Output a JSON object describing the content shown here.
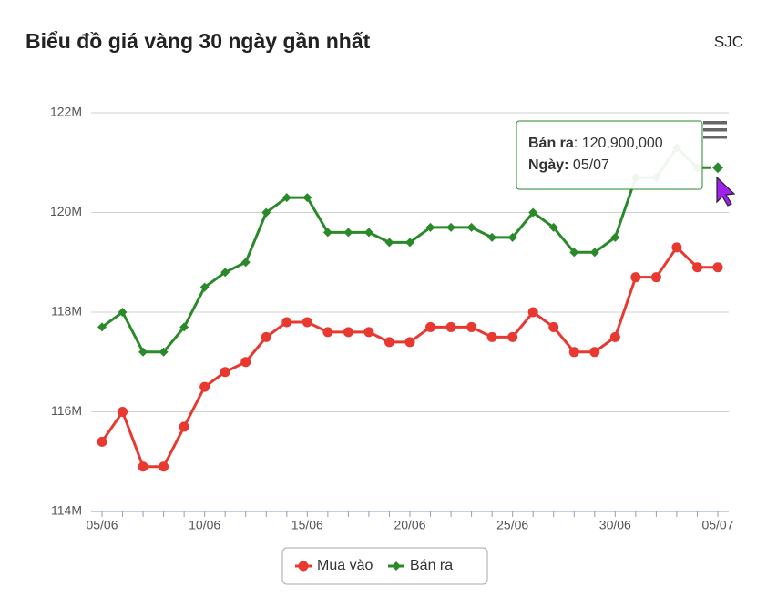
{
  "chart_data": {
    "type": "line",
    "title": "Biểu đồ giá vàng 30 ngày gần nhất",
    "subtitle": "SJC",
    "x": [
      "05/06",
      null,
      null,
      null,
      null,
      "10/06",
      null,
      null,
      null,
      null,
      "15/06",
      null,
      null,
      null,
      null,
      "20/06",
      null,
      null,
      null,
      null,
      "25/06",
      null,
      null,
      null,
      null,
      "30/06",
      null,
      null,
      null,
      null,
      "05/07"
    ],
    "series": [
      {
        "name": "Mua vào",
        "color": "#e8382f",
        "marker": "circle",
        "values": [
          115400000,
          116000000,
          114900000,
          114900000,
          115700000,
          116500000,
          116800000,
          117000000,
          117500000,
          117800000,
          117800000,
          117600000,
          117600000,
          117600000,
          117400000,
          117400000,
          117700000,
          117700000,
          117700000,
          117500000,
          117500000,
          118000000,
          117700000,
          117200000,
          117200000,
          117500000,
          118700000,
          118700000,
          119300000,
          118900000,
          118900000
        ]
      },
      {
        "name": "Bán ra",
        "color": "#2a8a2a",
        "marker": "diamond",
        "values": [
          117700000,
          118000000,
          117200000,
          117200000,
          117700000,
          118500000,
          118800000,
          119000000,
          120000000,
          120300000,
          120300000,
          119600000,
          119600000,
          119600000,
          119400000,
          119400000,
          119700000,
          119700000,
          119700000,
          119500000,
          119500000,
          120000000,
          119700000,
          119200000,
          119200000,
          119500000,
          120700000,
          120700000,
          121300000,
          120900000,
          120900000
        ]
      }
    ],
    "ylim": [
      114000000,
      122000000
    ],
    "yticks": [
      {
        "value": 114000000,
        "label": "114M"
      },
      {
        "value": 116000000,
        "label": "116M"
      },
      {
        "value": 118000000,
        "label": "118M"
      },
      {
        "value": 120000000,
        "label": "120M"
      },
      {
        "value": 122000000,
        "label": "122M"
      }
    ],
    "grid": true,
    "legend": "bottom",
    "tooltip": {
      "value_label": "120,900,000",
      "date_label": "Ngày"
    }
  }
}
